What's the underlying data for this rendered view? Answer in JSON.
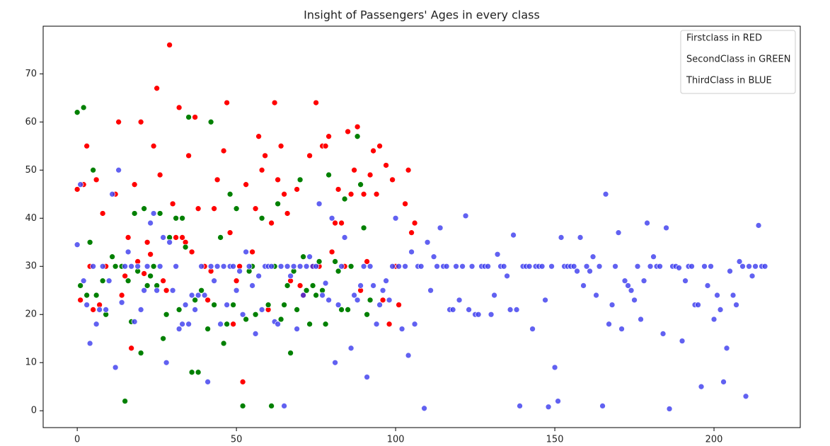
{
  "chart_data": {
    "type": "scatter",
    "title": "Insight of Passengers' Ages in every class",
    "xlim": [
      -10.7,
      227.1
    ],
    "ylim": [
      -3.5,
      79.9
    ],
    "xticks": [
      0,
      50,
      100,
      150,
      200
    ],
    "yticks": [
      0,
      10,
      20,
      30,
      40,
      50,
      60,
      70
    ],
    "legend": "upper right",
    "series": [
      {
        "name": "Firstclass in RED",
        "color": "#ff0000",
        "x": [
          0,
          1,
          2,
          3,
          4,
          5,
          6,
          7,
          8,
          9,
          12,
          13,
          14,
          15,
          16,
          17,
          18,
          19,
          20,
          21,
          22,
          23,
          24,
          25,
          26,
          27,
          28,
          29,
          30,
          31,
          32,
          33,
          34,
          35,
          36,
          37,
          38,
          40,
          41,
          42,
          43,
          44,
          46,
          47,
          48,
          49,
          50,
          51,
          52,
          53,
          55,
          56,
          57,
          58,
          59,
          60,
          61,
          62,
          63,
          64,
          65,
          66,
          67,
          69,
          70,
          71,
          73,
          74,
          75,
          76,
          77,
          78,
          79,
          80,
          81,
          82,
          83,
          84,
          85,
          86,
          87,
          88,
          89,
          90,
          91,
          92,
          93,
          94,
          95,
          96,
          97,
          98,
          99,
          100,
          101,
          103,
          104,
          105,
          106
        ],
        "values": [
          46,
          23,
          47,
          55,
          30,
          21,
          48,
          22,
          41,
          30,
          45,
          60,
          24,
          28,
          36,
          13,
          47,
          31,
          60,
          28.5,
          35,
          32.5,
          55,
          67,
          49,
          27,
          25,
          76,
          43,
          36,
          63,
          36,
          35,
          53,
          33,
          61,
          42,
          30,
          23,
          29,
          42,
          48,
          54,
          64,
          37,
          18,
          27,
          30,
          6,
          47,
          33,
          42,
          57,
          50,
          53,
          21,
          39,
          64,
          48,
          55,
          45,
          41,
          27,
          46,
          26,
          24,
          53,
          30,
          64,
          30,
          55,
          55,
          57,
          33,
          39,
          46,
          39,
          30,
          58,
          45,
          50,
          59,
          25,
          45,
          31,
          49,
          54,
          45,
          55,
          23,
          51,
          18,
          48,
          30,
          22,
          43,
          50,
          37,
          39
        ]
      },
      {
        "name": "SecondClass in GREEN",
        "color": "#008000",
        "x": [
          0,
          1,
          2,
          3,
          4,
          5,
          6,
          8,
          9,
          11,
          12,
          14,
          15,
          16,
          17,
          18,
          19,
          20,
          21,
          22,
          23,
          24,
          25,
          26,
          27,
          28,
          29,
          31,
          32,
          33,
          34,
          35,
          36,
          37,
          38,
          39,
          41,
          42,
          43,
          45,
          46,
          47,
          48,
          49,
          50,
          52,
          53,
          54,
          55,
          56,
          58,
          60,
          61,
          62,
          63,
          64,
          65,
          66,
          67,
          68,
          69,
          70,
          71,
          72,
          73,
          74,
          75,
          76,
          77,
          78,
          79,
          81,
          82,
          83,
          84,
          85,
          86,
          88,
          89,
          90,
          91,
          92
        ],
        "values": [
          62,
          26,
          63,
          24,
          35,
          50,
          24,
          27,
          20,
          32,
          30,
          30,
          2,
          27,
          18.5,
          41,
          29,
          12,
          42,
          26,
          28,
          30,
          26,
          41,
          15,
          20,
          36,
          40,
          21,
          40,
          34,
          61,
          8,
          23,
          8,
          25,
          17,
          60,
          22,
          36,
          14,
          18,
          45,
          22,
          42,
          1,
          19,
          29,
          30,
          20,
          40,
          22,
          1,
          30,
          43,
          19,
          22,
          26,
          12,
          29,
          21,
          48,
          32,
          25,
          18,
          26,
          24,
          31,
          25,
          18,
          49,
          31,
          29,
          21,
          44,
          21,
          30,
          57,
          47,
          38,
          20,
          23
        ]
      },
      {
        "name": "ThirdClass in BLUE",
        "color": "#3a3aee",
        "x": [
          0,
          1,
          2,
          3,
          4,
          5,
          6,
          7,
          8,
          9,
          10,
          11,
          12,
          13,
          14,
          15,
          16,
          17,
          18,
          19,
          20,
          21,
          22,
          23,
          24,
          25,
          26,
          27,
          28,
          29,
          30,
          31,
          32,
          33,
          34,
          35,
          36,
          37,
          38,
          39,
          40,
          41,
          42,
          43,
          44,
          45,
          46,
          47,
          48,
          49,
          50,
          51,
          52,
          53,
          54,
          55,
          56,
          57,
          58,
          59,
          60,
          61,
          62,
          63,
          64,
          65,
          66,
          67,
          68,
          69,
          70,
          71,
          72,
          73,
          74,
          75,
          76,
          77,
          78,
          79,
          80,
          81,
          82,
          83,
          84,
          86,
          87,
          88,
          89,
          90,
          91,
          92,
          93,
          94,
          95,
          96,
          97,
          98,
          99,
          100,
          101,
          102,
          103,
          104,
          105,
          106,
          107,
          108,
          109,
          110,
          111,
          112,
          113,
          114,
          115,
          116,
          117,
          118,
          119,
          120,
          121,
          122,
          123,
          124,
          125,
          126,
          127,
          128,
          129,
          130,
          131,
          132,
          133,
          134,
          135,
          136,
          137,
          138,
          139,
          140,
          141,
          142,
          143,
          144,
          145,
          146,
          147,
          148,
          149,
          150,
          151,
          152,
          153,
          154,
          155,
          156,
          157,
          158,
          159,
          160,
          161,
          162,
          163,
          164,
          165,
          166,
          167,
          168,
          169,
          170,
          171,
          172,
          173,
          174,
          175,
          176,
          177,
          178,
          179,
          180,
          181,
          182,
          183,
          184,
          185,
          186,
          187,
          188,
          189,
          190,
          191,
          192,
          193,
          194,
          195,
          196,
          197,
          198,
          199,
          200,
          201,
          202,
          203,
          204,
          205,
          206,
          207,
          208,
          209,
          210,
          211,
          212,
          213,
          214,
          215,
          216
        ],
        "values": [
          34.5,
          47,
          27,
          22,
          14,
          30,
          18,
          21,
          30,
          21,
          27,
          45,
          9,
          50,
          22.5,
          30,
          33,
          30,
          18.5,
          30,
          21,
          25,
          30,
          39,
          41,
          25,
          30,
          36,
          10,
          35,
          25,
          30,
          17,
          18,
          22,
          18,
          24,
          21,
          24,
          30,
          24,
          6,
          30,
          27,
          30,
          18,
          30,
          22,
          30,
          30,
          25,
          29,
          20,
          33,
          30,
          26,
          16,
          28,
          21,
          30,
          30,
          30,
          18.5,
          18,
          30,
          1,
          30,
          28,
          30,
          17,
          30,
          24,
          30,
          32,
          30,
          30,
          43,
          24,
          26.5,
          23,
          40,
          10,
          22,
          30,
          36,
          13,
          24,
          23,
          26,
          30,
          7,
          30,
          26,
          18,
          22,
          25,
          27,
          23,
          30,
          40,
          30,
          17,
          30,
          11.5,
          33,
          18,
          30,
          30,
          0.5,
          35,
          25,
          32,
          30,
          38,
          30,
          30,
          21,
          21,
          30,
          23,
          30,
          40.5,
          21,
          30,
          20,
          20,
          30,
          30,
          30,
          20,
          24,
          32.5,
          30,
          30,
          28,
          21,
          36.5,
          21,
          1,
          30,
          30,
          30,
          17,
          30,
          30,
          30,
          23,
          0.8,
          30,
          9,
          2,
          36,
          30,
          30,
          30,
          30,
          29,
          36,
          26,
          30,
          29,
          32,
          24,
          30,
          1,
          45,
          18,
          22,
          30,
          37,
          17,
          27,
          26,
          25,
          23,
          30,
          19,
          27,
          39,
          30,
          32,
          30,
          30,
          16,
          38,
          0.4,
          30,
          30,
          29.7,
          14.5,
          27,
          30,
          30,
          22,
          22,
          5,
          30,
          26,
          30,
          19,
          24,
          21,
          6,
          13,
          29,
          24,
          22,
          31,
          30,
          3,
          30,
          28,
          30,
          38.5,
          30,
          30
        ]
      }
    ]
  }
}
